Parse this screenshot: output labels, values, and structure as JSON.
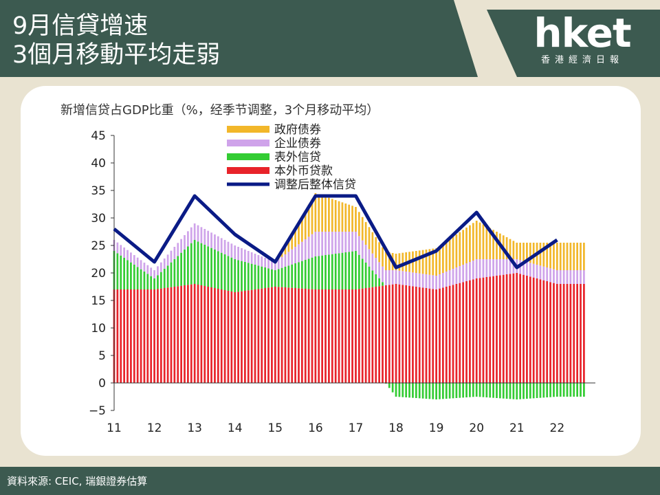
{
  "header": {
    "title_line1": "9月信貸增速",
    "title_line2": "3個月移動平均走弱",
    "logo_text": "hket",
    "logo_subtitle": "香港經濟日報"
  },
  "footer": {
    "source": "資料來源: CEIC, 瑞銀證券估算"
  },
  "colors": {
    "banner": "#3c5a50",
    "background": "#e9e3d1",
    "government_bonds": "#f2b72a",
    "corporate_bonds": "#cfa3ea",
    "off_balance": "#33cc33",
    "loans": "#e8232a",
    "total_line": "#0a1b86"
  },
  "chart_data": {
    "type": "bar",
    "stacked": true,
    "title": "新增信贷占GDP比重（%，经季节调整，3个月移动平均）",
    "ylim": [
      -5,
      45
    ],
    "y_ticks": [
      "45",
      "40",
      "35",
      "30",
      "25",
      "20",
      "15",
      "10",
      "5",
      "0",
      "−5"
    ],
    "x_tick_labels": [
      "11",
      "12",
      "13",
      "14",
      "15",
      "16",
      "17",
      "18",
      "19",
      "20",
      "21",
      "22"
    ],
    "legend_position": "top-center",
    "legend": [
      "政府债券",
      "企业债券",
      "表外信贷",
      "本外币贷款",
      "调整后整体信贷"
    ],
    "x": [
      2011,
      2012,
      2013,
      2014,
      2015,
      2016,
      2017,
      2018,
      2019,
      2020,
      2021,
      2022
    ],
    "series": [
      {
        "name": "本外币贷款",
        "type": "bar",
        "values": [
          17,
          17,
          18,
          16.5,
          17.5,
          17,
          17,
          18,
          17,
          19,
          20,
          18
        ]
      },
      {
        "name": "表外信贷",
        "type": "bar",
        "values": [
          7,
          2,
          8,
          6,
          3,
          6,
          7,
          -2.5,
          -3,
          -2.5,
          -3,
          -2.5
        ]
      },
      {
        "name": "企业债券",
        "type": "bar",
        "values": [
          2,
          1.5,
          3,
          2.5,
          1.5,
          4.5,
          3.5,
          2.5,
          2.5,
          3.5,
          2.5,
          2.5
        ]
      },
      {
        "name": "政府债券",
        "type": "bar",
        "values": [
          0,
          0,
          0,
          0,
          0,
          7,
          4.5,
          3,
          5,
          7,
          3,
          5
        ]
      },
      {
        "name": "调整后整体信贷",
        "type": "line",
        "values": [
          28,
          22,
          34,
          27,
          22,
          34,
          34,
          21,
          24,
          31,
          21,
          26
        ]
      }
    ]
  }
}
